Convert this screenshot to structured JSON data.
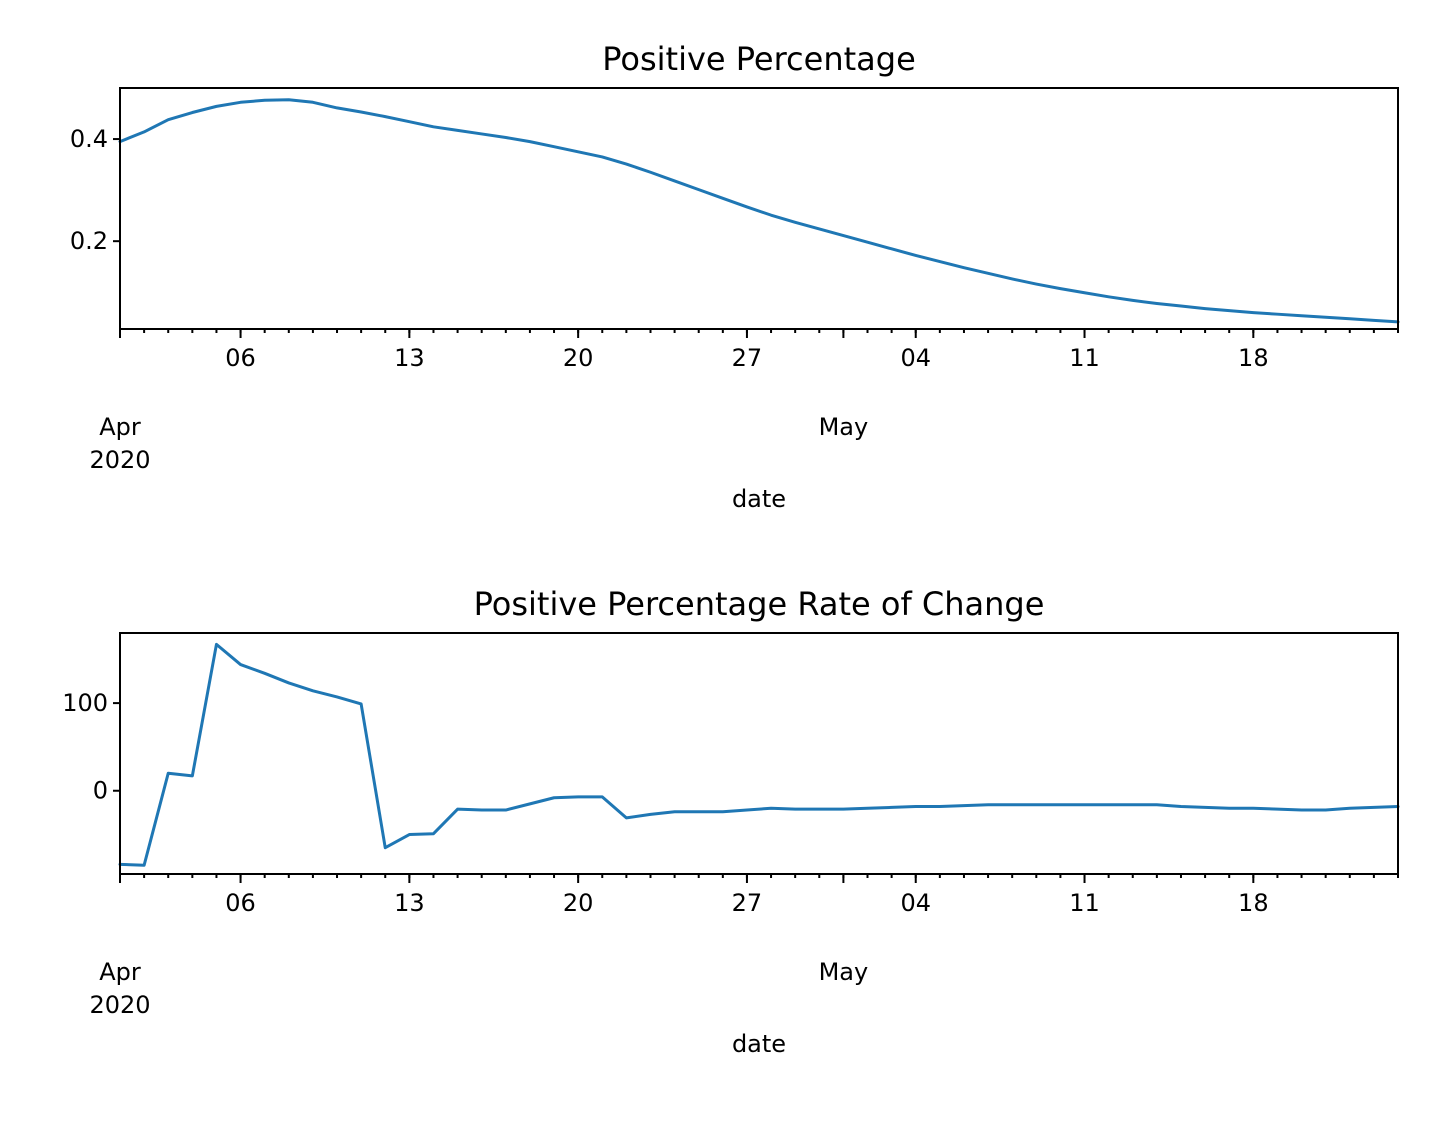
{
  "colors": {
    "series": "#1f77b4",
    "axes": "#000000",
    "background": "#ffffff"
  },
  "chart_data": [
    {
      "type": "line",
      "title": "Positive Percentage",
      "xlabel": "date",
      "ylabel": "",
      "x_start": "2020-04-01",
      "x_end": "2020-05-24",
      "major_ticks": [
        {
          "date": "2020-04-06",
          "label": "06"
        },
        {
          "date": "2020-04-13",
          "label": "13"
        },
        {
          "date": "2020-04-20",
          "label": "20"
        },
        {
          "date": "2020-04-27",
          "label": "27"
        },
        {
          "date": "2020-05-04",
          "label": "04"
        },
        {
          "date": "2020-05-11",
          "label": "11"
        },
        {
          "date": "2020-05-18",
          "label": "18"
        }
      ],
      "month_labels": [
        {
          "date": "2020-04-01",
          "label": "Apr",
          "sub": "2020"
        },
        {
          "date": "2020-05-01",
          "label": "May",
          "sub": ""
        }
      ],
      "ylim": [
        0.028,
        0.5
      ],
      "yticks": [
        {
          "value": 0.2,
          "label": "0.2"
        },
        {
          "value": 0.4,
          "label": "0.4"
        }
      ],
      "grid": false,
      "series": [
        {
          "values": [
            0.395,
            0.414,
            0.438,
            0.452,
            0.464,
            0.472,
            0.476,
            0.477,
            0.472,
            0.461,
            0.453,
            0.444,
            0.434,
            0.424,
            0.417,
            0.41,
            0.403,
            0.395,
            0.385,
            0.375,
            0.365,
            0.351,
            0.335,
            0.318,
            0.301,
            0.284,
            0.267,
            0.251,
            0.237,
            0.224,
            0.211,
            0.198,
            0.185,
            0.172,
            0.16,
            0.148,
            0.137,
            0.126,
            0.116,
            0.107,
            0.099,
            0.091,
            0.084,
            0.078,
            0.073,
            0.068,
            0.064,
            0.06,
            0.057,
            0.054,
            0.051,
            0.048,
            0.045,
            0.042
          ]
        }
      ]
    },
    {
      "type": "line",
      "title": "Positive Percentage Rate of Change",
      "xlabel": "date",
      "ylabel": "",
      "x_start": "2020-04-01",
      "x_end": "2020-05-24",
      "major_ticks": [
        {
          "date": "2020-04-06",
          "label": "06"
        },
        {
          "date": "2020-04-13",
          "label": "13"
        },
        {
          "date": "2020-04-20",
          "label": "20"
        },
        {
          "date": "2020-04-27",
          "label": "27"
        },
        {
          "date": "2020-05-04",
          "label": "04"
        },
        {
          "date": "2020-05-11",
          "label": "11"
        },
        {
          "date": "2020-05-18",
          "label": "18"
        }
      ],
      "month_labels": [
        {
          "date": "2020-04-01",
          "label": "Apr",
          "sub": "2020"
        },
        {
          "date": "2020-05-01",
          "label": "May",
          "sub": ""
        }
      ],
      "ylim": [
        -95,
        180
      ],
      "yticks": [
        {
          "value": 0,
          "label": "0"
        },
        {
          "value": 100,
          "label": "100"
        }
      ],
      "grid": false,
      "series": [
        {
          "values": [
            -84,
            -85,
            20,
            17,
            167,
            144,
            134,
            123,
            114,
            107,
            99,
            -65,
            -50,
            -49,
            -21,
            -22,
            -22,
            -15,
            -8,
            -7,
            -7,
            -31,
            -27,
            -24,
            -24,
            -24,
            -22,
            -20,
            -21,
            -21,
            -21,
            -20,
            -19,
            -18,
            -18,
            -17,
            -16,
            -16,
            -16,
            -16,
            -16,
            -16,
            -16,
            -16,
            -18,
            -19,
            -20,
            -20,
            -21,
            -22,
            -22,
            -20,
            -19,
            -18
          ]
        }
      ]
    }
  ]
}
